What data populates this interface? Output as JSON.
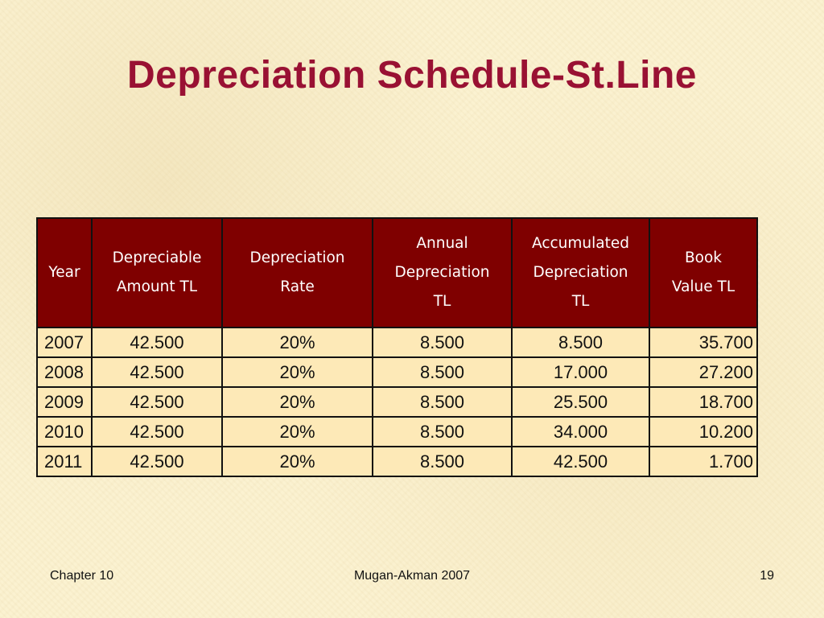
{
  "slide": {
    "title": "Depreciation Schedule-St.Line"
  },
  "table": {
    "headers": [
      {
        "lines": [
          "Year"
        ]
      },
      {
        "lines": [
          "Depreciable",
          "Amount TL"
        ]
      },
      {
        "lines": [
          "Depreciation",
          "Rate"
        ]
      },
      {
        "lines": [
          "Annual",
          "Depreciation",
          "TL"
        ]
      },
      {
        "lines": [
          "Accumulated",
          "Depreciation",
          "TL"
        ]
      },
      {
        "lines": [
          "Book",
          "Value TL"
        ]
      }
    ],
    "rows": [
      [
        "2007",
        "42.500",
        "20%",
        "8.500",
        "8.500",
        "35.700"
      ],
      [
        "2008",
        "42.500",
        "20%",
        "8.500",
        "17.000",
        "27.200"
      ],
      [
        "2009",
        "42.500",
        "20%",
        "8.500",
        "25.500",
        "18.700"
      ],
      [
        "2010",
        "42.500",
        "20%",
        "8.500",
        "34.000",
        "10.200"
      ],
      [
        "2011",
        "42.500",
        "20%",
        "8.500",
        "42.500",
        "1.700"
      ]
    ]
  },
  "footer": {
    "left": "Chapter 10",
    "center": "Mugan-Akman 2007",
    "right": "19"
  },
  "colors": {
    "title": "#991133",
    "header_bg": "#7f0000",
    "cell_bg": "#fde9b7",
    "page_bg": "#fbf1cf"
  }
}
